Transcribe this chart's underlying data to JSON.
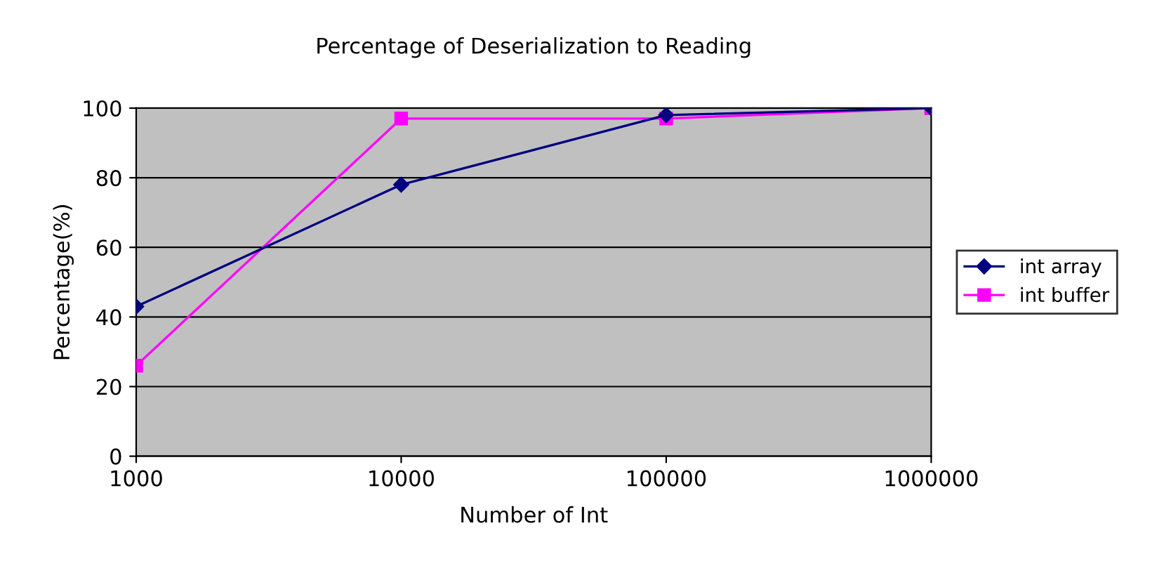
{
  "chart_data": {
    "type": "line",
    "title": "Percentage of Deserialization to Reading",
    "xlabel": "Number of Int",
    "ylabel": "Percentage(%)",
    "x": [
      1000,
      10000,
      100000,
      1000000
    ],
    "series": [
      {
        "name": "int array",
        "color": "#000080",
        "marker": "diamond",
        "values": [
          43,
          78,
          98,
          100
        ]
      },
      {
        "name": "int buffer",
        "color": "#ff00ff",
        "marker": "square",
        "values": [
          26,
          97,
          97,
          100
        ]
      }
    ],
    "log": "x",
    "xlim": [
      1000,
      1000000
    ],
    "xticks": [
      1000,
      10000,
      100000,
      1000000
    ],
    "ylim": [
      0,
      100
    ],
    "yticks": [
      0,
      20,
      40,
      60,
      80,
      100
    ],
    "grid": "y",
    "legend": "right",
    "line_style": "solid"
  }
}
